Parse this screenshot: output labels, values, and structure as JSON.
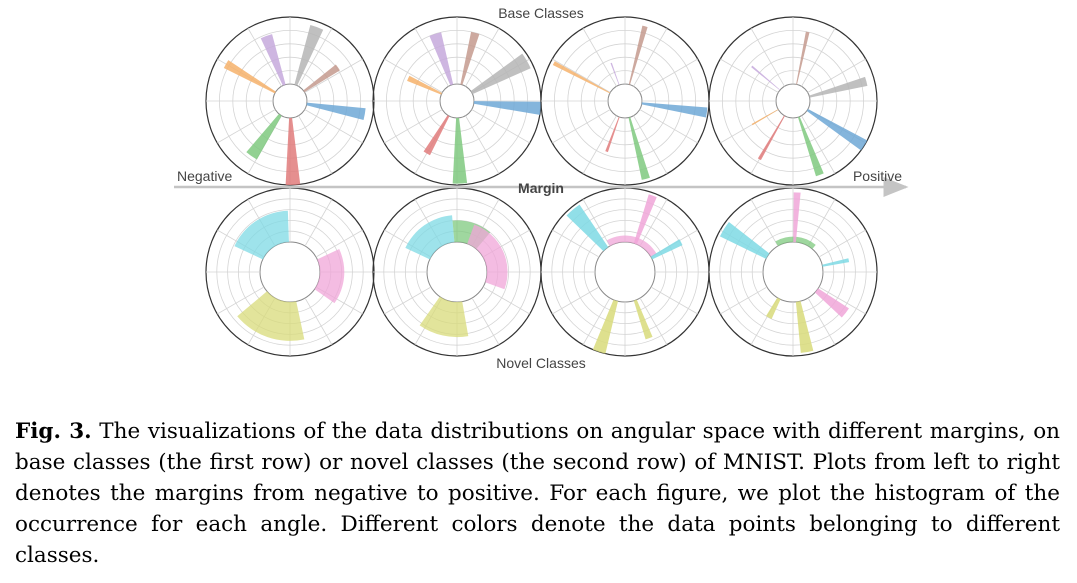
{
  "figure": {
    "top_label": "Base Classes",
    "bottom_label": "Novel Classes",
    "axis_left": "Negative",
    "axis_center": "Margin",
    "axis_right": "Positive",
    "rings": 5,
    "spokes": 12,
    "colors": {
      "blue": "#6fa8d6",
      "orange": "#f6b26b",
      "green": "#7fc97f",
      "red": "#e07b7b",
      "purple": "#c6a9dc",
      "brown": "#c49a8e",
      "gray": "#b5b5b5",
      "cyan": "#7ed9e4",
      "pink": "#f0a6d8",
      "olive": "#d8db7a"
    },
    "panels": [
      {
        "row": "base",
        "bars": [
          {
            "angle": 20,
            "len": 0.92,
            "w": 10,
            "color": "gray"
          },
          {
            "angle": 55,
            "len": 0.62,
            "w": 7,
            "color": "brown"
          },
          {
            "angle": 100,
            "len": 0.88,
            "w": 9,
            "color": "blue"
          },
          {
            "angle": 178,
            "len": 1.0,
            "w": 10,
            "color": "red"
          },
          {
            "angle": 215,
            "len": 0.75,
            "w": 11,
            "color": "green"
          },
          {
            "angle": 300,
            "len": 0.85,
            "w": 7,
            "color": "orange"
          },
          {
            "angle": 340,
            "len": 0.78,
            "w": 10,
            "color": "purple"
          }
        ]
      },
      {
        "row": "base",
        "bars": [
          {
            "angle": 15,
            "len": 0.8,
            "w": 7,
            "color": "brown"
          },
          {
            "angle": 60,
            "len": 0.95,
            "w": 12,
            "color": "gray"
          },
          {
            "angle": 95,
            "len": 1.0,
            "w": 9,
            "color": "blue"
          },
          {
            "angle": 178,
            "len": 0.98,
            "w": 10,
            "color": "green"
          },
          {
            "angle": 210,
            "len": 0.65,
            "w": 7,
            "color": "red"
          },
          {
            "angle": 295,
            "len": 0.55,
            "w": 6,
            "color": "orange"
          },
          {
            "angle": 342,
            "len": 0.8,
            "w": 10,
            "color": "purple"
          }
        ]
      },
      {
        "row": "base",
        "bars": [
          {
            "angle": 15,
            "len": 0.9,
            "w": 4,
            "color": "brown"
          },
          {
            "angle": 98,
            "len": 0.98,
            "w": 7,
            "color": "blue"
          },
          {
            "angle": 165,
            "len": 0.95,
            "w": 6,
            "color": "green"
          },
          {
            "angle": 200,
            "len": 0.55,
            "w": 3,
            "color": "red"
          },
          {
            "angle": 298,
            "len": 0.95,
            "w": 3,
            "color": "orange"
          },
          {
            "angle": 340,
            "len": 0.35,
            "w": 2,
            "color": "purple"
          }
        ]
      },
      {
        "row": "base",
        "bars": [
          {
            "angle": 12,
            "len": 0.8,
            "w": 3,
            "color": "brown"
          },
          {
            "angle": 75,
            "len": 0.88,
            "w": 7,
            "color": "gray"
          },
          {
            "angle": 122,
            "len": 1.0,
            "w": 8,
            "color": "blue"
          },
          {
            "angle": 160,
            "len": 0.92,
            "w": 6,
            "color": "green"
          },
          {
            "angle": 210,
            "len": 0.75,
            "w": 3,
            "color": "red"
          },
          {
            "angle": 240,
            "len": 0.45,
            "w": 2,
            "color": "orange"
          },
          {
            "angle": 310,
            "len": 0.55,
            "w": 2,
            "color": "purple"
          }
        ]
      },
      {
        "row": "novel",
        "wedges": [
          {
            "start": 295,
            "end": 358,
            "len": 0.58,
            "color": "cyan"
          },
          {
            "start": 65,
            "end": 125,
            "len": 0.45,
            "color": "pink"
          },
          {
            "start": 168,
            "end": 230,
            "len": 0.72,
            "color": "olive"
          }
        ]
      },
      {
        "row": "novel",
        "wedges": [
          {
            "start": 295,
            "end": 355,
            "len": 0.5,
            "color": "cyan"
          },
          {
            "start": 355,
            "end": 40,
            "len": 0.4,
            "color": "green"
          },
          {
            "start": 20,
            "end": 110,
            "len": 0.38,
            "color": "pink"
          },
          {
            "start": 170,
            "end": 215,
            "len": 0.65,
            "color": "olive"
          }
        ]
      },
      {
        "row": "novel",
        "bars": [
          {
            "angle": 320,
            "len": 0.95,
            "w": 12,
            "color": "cyan"
          },
          {
            "angle": 20,
            "len": 0.95,
            "w": 6,
            "color": "pink"
          },
          {
            "angle": 62,
            "len": 0.62,
            "w": 6,
            "color": "cyan"
          },
          {
            "angle": 160,
            "len": 0.75,
            "w": 6,
            "color": "olive"
          },
          {
            "angle": 198,
            "len": 1.0,
            "w": 9,
            "color": "olive"
          }
        ],
        "wedges": [
          {
            "start": 330,
            "end": 60,
            "len": 0.12,
            "color": "pink"
          }
        ]
      },
      {
        "row": "novel",
        "bars": [
          {
            "angle": 3,
            "len": 0.92,
            "w": 5,
            "color": "pink"
          },
          {
            "angle": 78,
            "len": 0.5,
            "w": 4,
            "color": "cyan"
          },
          {
            "angle": 128,
            "len": 0.68,
            "w": 10,
            "color": "pink"
          },
          {
            "angle": 170,
            "len": 0.95,
            "w": 9,
            "color": "olive"
          },
          {
            "angle": 208,
            "len": 0.4,
            "w": 7,
            "color": "olive"
          },
          {
            "angle": 302,
            "len": 0.95,
            "w": 12,
            "color": "cyan"
          }
        ],
        "wedges": [
          {
            "start": 330,
            "end": 40,
            "len": 0.1,
            "color": "green"
          }
        ]
      }
    ]
  },
  "caption": {
    "label": "Fig. 3.",
    "text": "The visualizations of the data distributions on angular space with different margins, on base classes (the first row) or novel classes (the second row) of MNIST. Plots from left to right denotes the margins from negative to positive. For each figure, we plot the histogram of the occurrence for each angle. Different colors denote the data points belonging to different classes."
  }
}
